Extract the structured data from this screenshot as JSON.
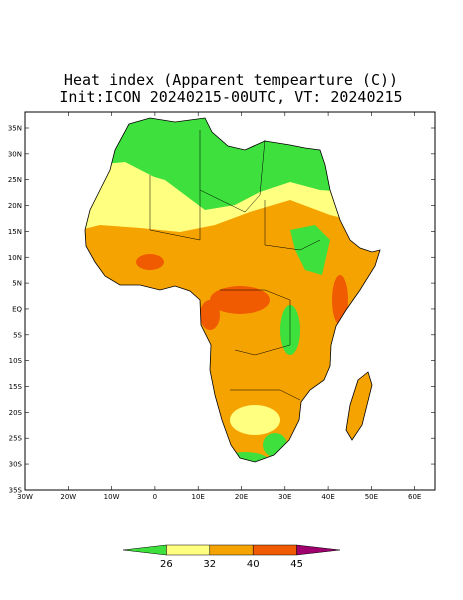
{
  "title": [
    "Heat index (Apparent tempearture (C))",
    "Init:ICON 20240215-00UTC, VT: 20240215"
  ],
  "map": {
    "lat_labels": [
      "35N",
      "30N",
      "25N",
      "20N",
      "15N",
      "10N",
      "5N",
      "EQ",
      "5S",
      "10S",
      "15S",
      "20S",
      "25S",
      "30S",
      "35S"
    ],
    "lon_labels": [
      "30W",
      "20W",
      "10W",
      "0",
      "10E",
      "20E",
      "30E",
      "40E",
      "50E",
      "60E"
    ]
  },
  "legend": {
    "labels": [
      "26",
      "32",
      "40",
      "45"
    ],
    "colors": [
      "#3ee03e",
      "#ffff80",
      "#f5a300",
      "#f05a00",
      "#a0006e"
    ]
  }
}
